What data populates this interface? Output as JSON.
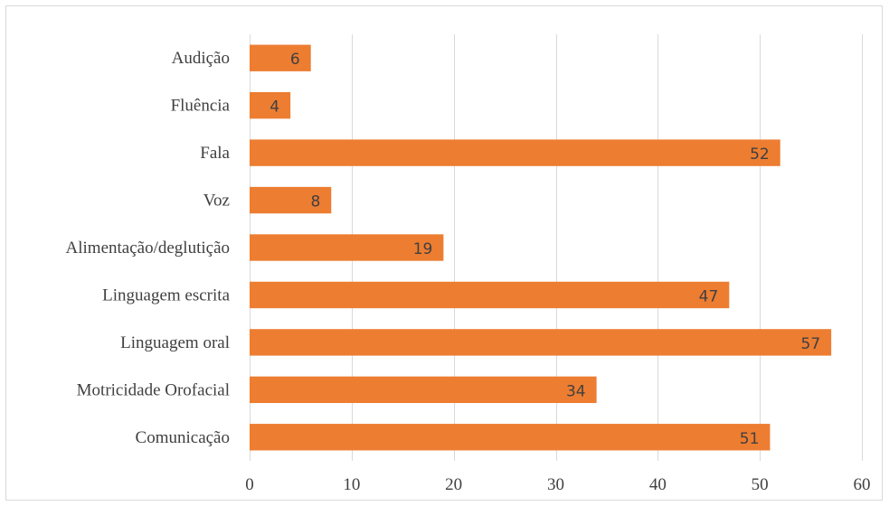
{
  "chart_data": {
    "type": "bar",
    "orientation": "horizontal",
    "title": "",
    "xlabel": "",
    "ylabel": "",
    "categories": [
      "Audição",
      "Fluência",
      "Fala",
      "Voz",
      "Alimentação/deglutição",
      "Linguagem escrita",
      "Linguagem oral",
      "Motricidade Orofacial",
      "Comunicação"
    ],
    "values": [
      6,
      4,
      52,
      8,
      19,
      47,
      57,
      34,
      51
    ],
    "xlim": [
      0,
      60
    ],
    "x_ticks": [
      "0",
      "10",
      "20",
      "30",
      "40",
      "50",
      "60"
    ],
    "grid": "vertical",
    "data_labels": "inside-end",
    "colors": {
      "bar": "#ed7d31",
      "grid": "#d9d9d9",
      "text": "#404040",
      "border": "#d9d9d9"
    }
  }
}
